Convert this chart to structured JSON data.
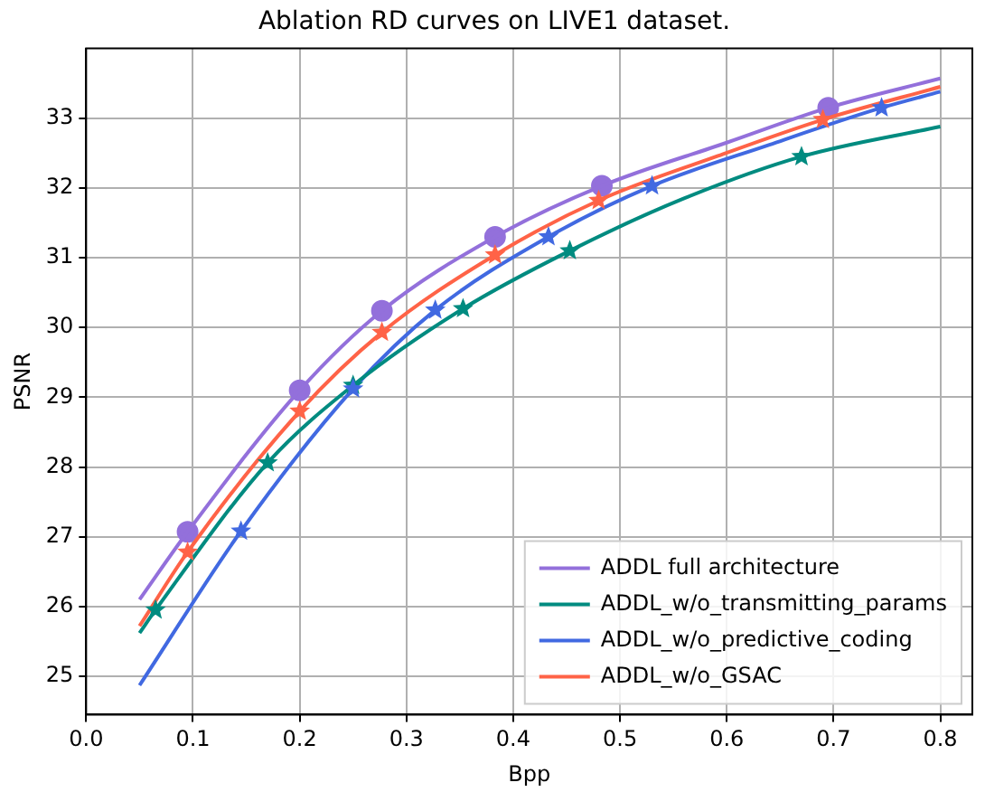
{
  "chart_data": {
    "type": "line",
    "title": "Ablation RD curves on LIVE1 dataset.",
    "xlabel": "Bpp",
    "ylabel": "PSNR",
    "xlim": [
      0,
      0.83
    ],
    "ylim": [
      24.45,
      34.0
    ],
    "xticks": [
      {
        "value": 0,
        "label": "0.0"
      },
      {
        "value": 0.1,
        "label": "0.1"
      },
      {
        "value": 0.2,
        "label": "0.2"
      },
      {
        "value": 0.3,
        "label": "0.3"
      },
      {
        "value": 0.4,
        "label": "0.4"
      },
      {
        "value": 0.5,
        "label": "0.5"
      },
      {
        "value": 0.6,
        "label": "0.6"
      },
      {
        "value": 0.7,
        "label": "0.7"
      },
      {
        "value": 0.8,
        "label": "0.8"
      }
    ],
    "yticks": [
      25,
      26,
      27,
      28,
      29,
      30,
      31,
      32,
      33
    ],
    "grid": true,
    "legend": "bottom right",
    "series": [
      {
        "name": "ADDL full architecture",
        "type": "line",
        "color": "#9370db",
        "x": [
          0.05,
          0.095,
          0.2,
          0.277,
          0.383,
          0.483,
          0.6,
          0.695,
          0.8
        ],
        "values": [
          26.1,
          27.07,
          29.1,
          30.24,
          31.3,
          32.03,
          32.65,
          33.15,
          33.57
        ]
      },
      {
        "name": "ADDL_w/o_transmitting_params",
        "type": "line",
        "color": "#008b80",
        "x": [
          0.05,
          0.065,
          0.17,
          0.25,
          0.353,
          0.453,
          0.56,
          0.67,
          0.8
        ],
        "values": [
          25.62,
          25.95,
          28.06,
          29.17,
          30.27,
          31.1,
          31.85,
          32.45,
          32.88
        ]
      },
      {
        "name": "ADDL_w/o_predictive_coding",
        "type": "line",
        "color": "#4169e1",
        "x": [
          0.05,
          0.145,
          0.25,
          0.327,
          0.433,
          0.53,
          0.64,
          0.745,
          0.8
        ],
        "values": [
          24.87,
          27.08,
          29.12,
          30.25,
          31.3,
          32.03,
          32.62,
          33.15,
          33.38
        ]
      },
      {
        "name": "ADDL_w/o_GSAC",
        "type": "line",
        "color": "#ff6347",
        "x": [
          0.05,
          0.095,
          0.2,
          0.277,
          0.383,
          0.48,
          0.59,
          0.69,
          0.8
        ],
        "values": [
          25.72,
          26.78,
          28.8,
          29.93,
          31.04,
          31.82,
          32.45,
          32.98,
          33.45
        ]
      },
      {
        "type": "scatter",
        "marker": "circle",
        "color": "#9370db",
        "x": [
          0.095,
          0.2,
          0.277,
          0.383,
          0.483,
          0.695
        ],
        "values": [
          27.07,
          29.1,
          30.24,
          31.3,
          32.03,
          33.15
        ]
      },
      {
        "type": "scatter",
        "marker": "star",
        "color": "#008b80",
        "x": [
          0.065,
          0.17,
          0.25,
          0.353,
          0.453,
          0.67
        ],
        "values": [
          25.95,
          28.06,
          29.17,
          30.27,
          31.1,
          32.45
        ]
      },
      {
        "type": "scatter",
        "marker": "star",
        "color": "#4169e1",
        "x": [
          0.145,
          0.25,
          0.327,
          0.433,
          0.53,
          0.745
        ],
        "values": [
          27.08,
          29.12,
          30.25,
          31.3,
          32.03,
          33.15
        ]
      },
      {
        "type": "scatter",
        "marker": "star",
        "color": "#ff6347",
        "x": [
          0.095,
          0.2,
          0.277,
          0.383,
          0.48,
          0.69
        ],
        "values": [
          26.78,
          28.8,
          29.93,
          31.04,
          31.82,
          32.98
        ]
      }
    ]
  }
}
